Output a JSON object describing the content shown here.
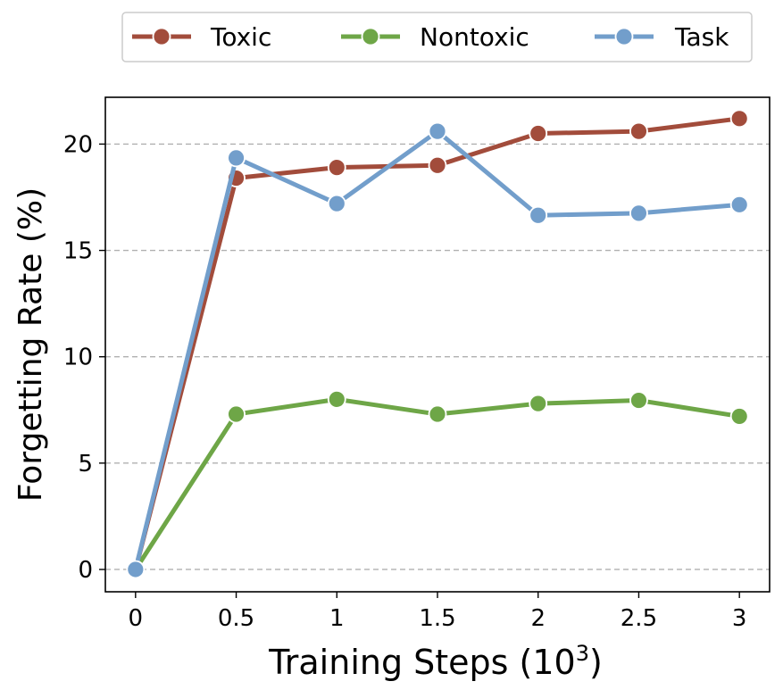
{
  "chart_data": {
    "type": "line",
    "title": "",
    "xlabel": "Training Steps (10",
    "xlabel_superscript": "3",
    "xlabel_suffix": ")",
    "ylabel": "Forgetting Rate (%)",
    "x": [
      0,
      0.5,
      1,
      1.5,
      2,
      2.5,
      3
    ],
    "x_tick_labels": [
      "0",
      "0.5",
      "1",
      "1.5",
      "2",
      "2.5",
      "3"
    ],
    "y_ticks": [
      0,
      5,
      10,
      15,
      20
    ],
    "y_tick_labels": [
      "0",
      "5",
      "10",
      "15",
      "20"
    ],
    "xlim": [
      -0.15,
      3.15
    ],
    "ylim": [
      -1.05,
      22.2
    ],
    "grid": "horizontal dashed",
    "legend_position": "top-center",
    "series": [
      {
        "name": "Toxic",
        "color": "#a24c3b",
        "values": [
          0,
          18.4,
          18.9,
          19.0,
          20.5,
          20.6,
          21.2
        ]
      },
      {
        "name": "Nontoxic",
        "color": "#6ea647",
        "values": [
          0,
          7.3,
          8.0,
          7.3,
          7.8,
          7.95,
          7.2
        ]
      },
      {
        "name": "Task",
        "color": "#729ecb",
        "values": [
          0,
          19.35,
          17.2,
          20.6,
          16.65,
          16.75,
          17.15
        ]
      }
    ]
  }
}
